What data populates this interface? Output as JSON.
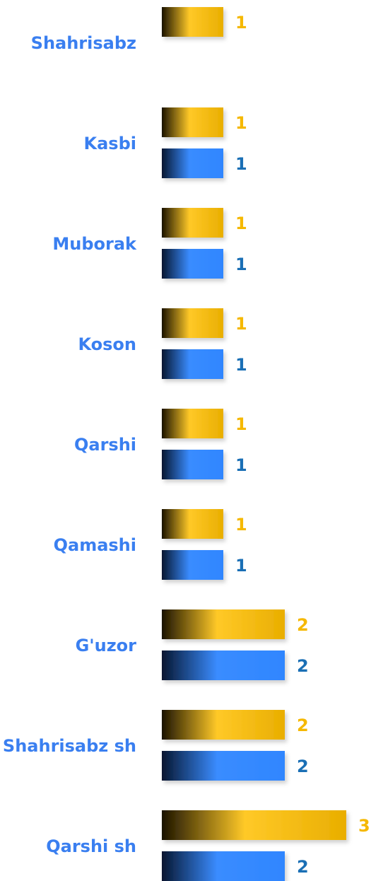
{
  "chart_data": {
    "type": "bar",
    "orientation": "horizontal",
    "categories": [
      "Shahrisabz",
      "Kasbi",
      "Muborak",
      "Koson",
      "Qarshi",
      "Qamashi",
      "G'uzor",
      "Shahrisabz sh",
      "Qarshi sh"
    ],
    "series": [
      {
        "color": "#f5b800",
        "values": [
          1,
          1,
          1,
          1,
          1,
          1,
          2,
          2,
          3
        ]
      },
      {
        "color": "#2f86ff",
        "values": [
          null,
          1,
          1,
          1,
          1,
          1,
          2,
          2,
          2
        ]
      }
    ]
  }
}
